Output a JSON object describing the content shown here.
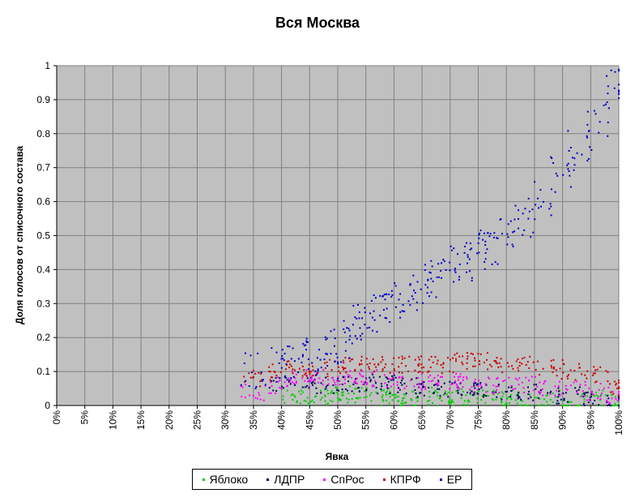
{
  "chart_data": {
    "type": "scatter",
    "title": "Вся Москва",
    "xlabel": "Явка",
    "ylabel": "Доля голосов от списочного состава",
    "xlim": [
      0,
      100
    ],
    "ylim": [
      0,
      1
    ],
    "x_unit": "%",
    "x_ticks": [
      "0%",
      "5%",
      "10%",
      "15%",
      "20%",
      "25%",
      "30%",
      "35%",
      "40%",
      "45%",
      "50%",
      "55%",
      "60%",
      "65%",
      "70%",
      "75%",
      "80%",
      "85%",
      "90%",
      "95%",
      "100%"
    ],
    "y_ticks": [
      "0",
      "0.1",
      "0.2",
      "0.3",
      "0.4",
      "0.5",
      "0.6",
      "0.7",
      "0.8",
      "0.9",
      "1"
    ],
    "grid": true,
    "background": "#c0c0c0",
    "legend_position": "bottom",
    "series": [
      {
        "name": "Яблоко",
        "color": "#00cc00",
        "points": [
          [
            42,
            0.03
          ],
          [
            45,
            0.02
          ],
          [
            48,
            0.03
          ],
          [
            50,
            0.02
          ],
          [
            52,
            0.04
          ],
          [
            55,
            0.03
          ],
          [
            58,
            0.02
          ],
          [
            60,
            0.03
          ],
          [
            62,
            0.02
          ],
          [
            65,
            0.03
          ],
          [
            68,
            0.02
          ],
          [
            70,
            0.03
          ],
          [
            72,
            0.02
          ],
          [
            75,
            0.02
          ],
          [
            78,
            0.03
          ],
          [
            80,
            0.02
          ],
          [
            82,
            0.02
          ],
          [
            85,
            0.01
          ],
          [
            88,
            0.02
          ],
          [
            92,
            0.01
          ],
          [
            95,
            0.02
          ],
          [
            98,
            0.01
          ],
          [
            100,
            0.01
          ]
        ]
      },
      {
        "name": "ЛДПР",
        "color": "#000066",
        "points": [
          [
            40,
            0.06
          ],
          [
            44,
            0.07
          ],
          [
            48,
            0.06
          ],
          [
            52,
            0.06
          ],
          [
            55,
            0.06
          ],
          [
            58,
            0.07
          ],
          [
            60,
            0.06
          ],
          [
            63,
            0.06
          ],
          [
            66,
            0.05
          ],
          [
            70,
            0.05
          ],
          [
            73,
            0.05
          ],
          [
            76,
            0.05
          ],
          [
            80,
            0.04
          ],
          [
            84,
            0.04
          ],
          [
            88,
            0.03
          ],
          [
            92,
            0.03
          ],
          [
            96,
            0.02
          ],
          [
            100,
            0.01
          ]
        ]
      },
      {
        "name": "СпРос",
        "color": "#ff00ff",
        "points": [
          [
            35,
            0.04
          ],
          [
            40,
            0.06
          ],
          [
            43,
            0.08
          ],
          [
            46,
            0.08
          ],
          [
            50,
            0.08
          ],
          [
            53,
            0.08
          ],
          [
            56,
            0.08
          ],
          [
            60,
            0.08
          ],
          [
            63,
            0.07
          ],
          [
            66,
            0.07
          ],
          [
            70,
            0.07
          ],
          [
            73,
            0.07
          ],
          [
            76,
            0.06
          ],
          [
            80,
            0.06
          ],
          [
            84,
            0.06
          ],
          [
            88,
            0.05
          ],
          [
            92,
            0.05
          ],
          [
            96,
            0.04
          ],
          [
            100,
            0.03
          ]
        ]
      },
      {
        "name": "КПРФ",
        "color": "#cc0000",
        "points": [
          [
            35,
            0.08
          ],
          [
            40,
            0.1
          ],
          [
            43,
            0.11
          ],
          [
            46,
            0.11
          ],
          [
            50,
            0.12
          ],
          [
            53,
            0.12
          ],
          [
            56,
            0.12
          ],
          [
            60,
            0.12
          ],
          [
            63,
            0.12
          ],
          [
            66,
            0.12
          ],
          [
            70,
            0.12
          ],
          [
            73,
            0.13
          ],
          [
            76,
            0.13
          ],
          [
            80,
            0.12
          ],
          [
            84,
            0.12
          ],
          [
            88,
            0.11
          ],
          [
            92,
            0.1
          ],
          [
            96,
            0.09
          ],
          [
            100,
            0.05
          ]
        ]
      },
      {
        "name": "ЕР",
        "color": "#0000cc",
        "points": [
          [
            35,
            0.1
          ],
          [
            40,
            0.12
          ],
          [
            43,
            0.13
          ],
          [
            46,
            0.14
          ],
          [
            48,
            0.16
          ],
          [
            50,
            0.17
          ],
          [
            53,
            0.22
          ],
          [
            55,
            0.25
          ],
          [
            57,
            0.28
          ],
          [
            60,
            0.3
          ],
          [
            62,
            0.33
          ],
          [
            65,
            0.35
          ],
          [
            67,
            0.37
          ],
          [
            70,
            0.4
          ],
          [
            72,
            0.42
          ],
          [
            75,
            0.45
          ],
          [
            77,
            0.47
          ],
          [
            80,
            0.5
          ],
          [
            83,
            0.55
          ],
          [
            86,
            0.6
          ],
          [
            90,
            0.68
          ],
          [
            93,
            0.75
          ],
          [
            96,
            0.85
          ],
          [
            100,
            0.95
          ]
        ]
      }
    ]
  }
}
